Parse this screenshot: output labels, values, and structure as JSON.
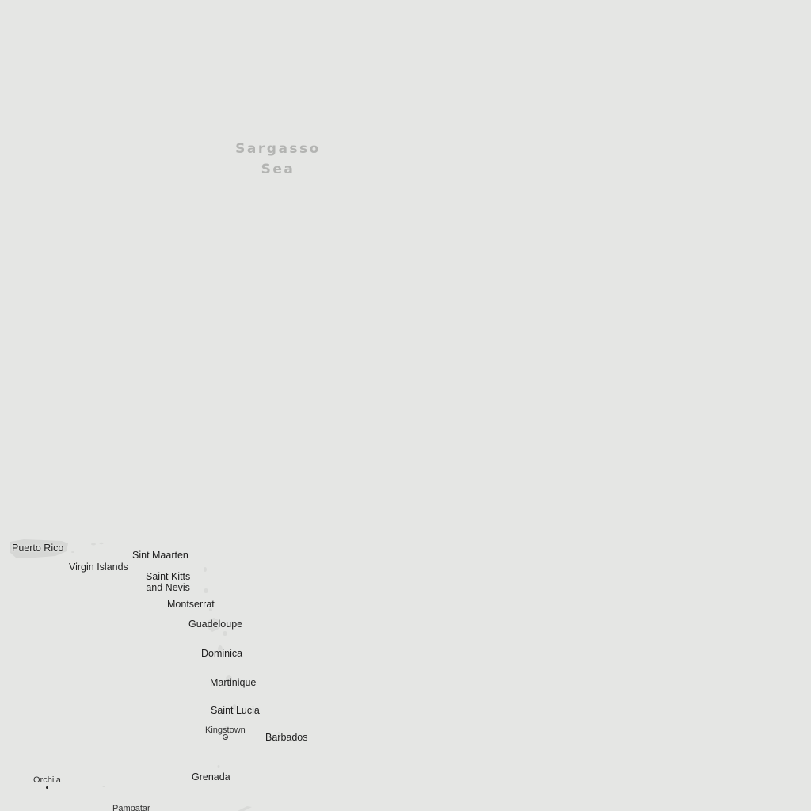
{
  "map": {
    "sea_label": {
      "line1": "Sargasso",
      "line2": "Sea"
    },
    "places": {
      "puerto_rico": "Puerto Rico",
      "virgin_islands": "Virgin Islands",
      "sint_maarten": "Sint Maarten",
      "saint_kitts_line1": "Saint Kitts",
      "saint_kitts_line2": "and Nevis",
      "montserrat": "Montserrat",
      "guadeloupe": "Guadeloupe",
      "dominica": "Dominica",
      "martinique": "Martinique",
      "saint_lucia": "Saint Lucia",
      "kingstown": "Kingstown",
      "barbados": "Barbados",
      "grenada": "Grenada",
      "orchila": "Orchila",
      "pampatar": "Pampatar"
    },
    "colors": {
      "water": "#e5e6e4",
      "land": "#d6d7d5",
      "label": "#1e1e1e",
      "sea_label": "#b3b4b2"
    }
  }
}
